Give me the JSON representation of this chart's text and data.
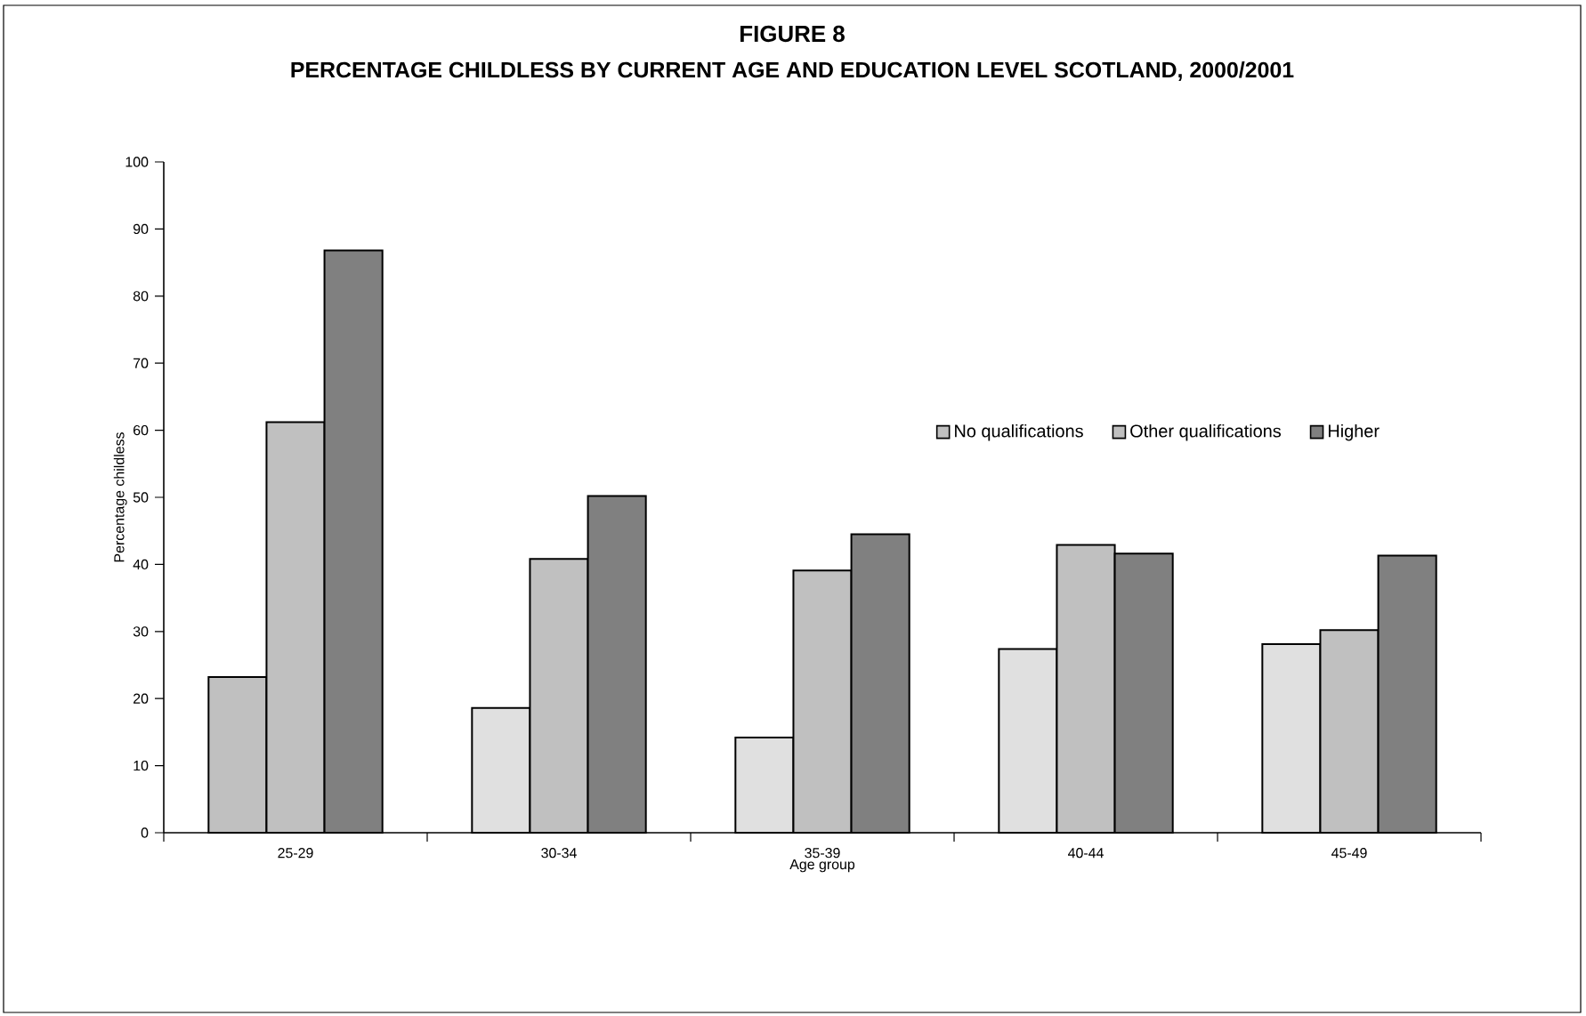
{
  "chart_data": {
    "type": "bar",
    "title": "FIGURE 8",
    "subtitle": "PERCENTAGE CHILDLESS BY CURRENT AGE AND EDUCATION LEVEL SCOTLAND, 2000/2001",
    "xlabel": "Age group",
    "ylabel": "Percentage childless",
    "categories": [
      "25-29",
      "30-34",
      "35-39",
      "40-44",
      "45-49"
    ],
    "series": [
      {
        "name": "No qualifications",
        "colors": [
          "#c0c0c0",
          "#e0e0e0",
          "#e0e0e0",
          "#e0e0e0",
          "#e0e0e0"
        ],
        "values": [
          23.2,
          18.6,
          14.2,
          27.4,
          28.1
        ]
      },
      {
        "name": "Other qualifications",
        "color": "#c0c0c0",
        "values": [
          61.2,
          40.8,
          39.1,
          42.9,
          30.2
        ]
      },
      {
        "name": "Higher",
        "color": "#808080",
        "values": [
          86.8,
          50.2,
          44.5,
          41.6,
          41.3
        ]
      }
    ],
    "ylim": [
      0,
      100
    ],
    "yticks": [
      0,
      10,
      20,
      30,
      40,
      50,
      60,
      70,
      80,
      90,
      100
    ],
    "grid": false,
    "legend": "top right"
  }
}
